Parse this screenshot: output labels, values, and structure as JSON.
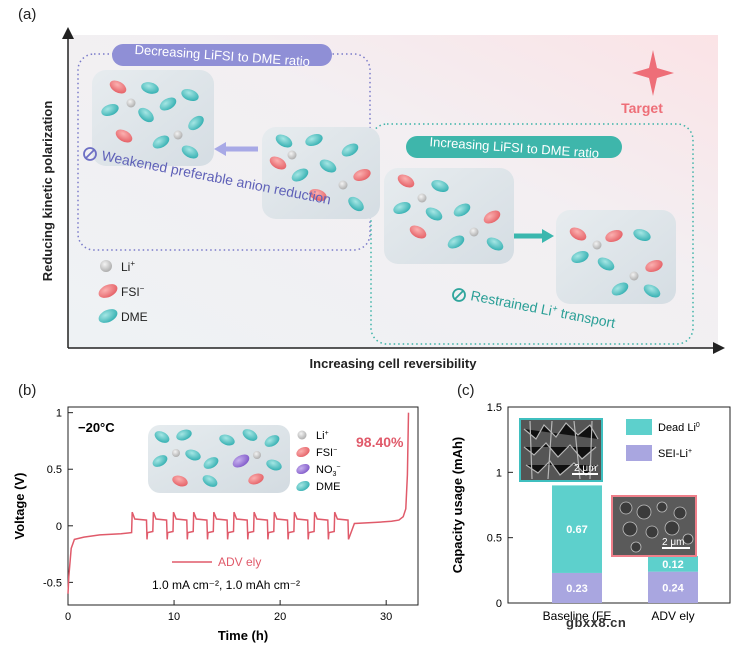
{
  "panel_a": {
    "label": "(a)",
    "y_axis": "Reducing kinetic polarization",
    "x_axis": "Increasing cell reversibility",
    "target": "Target",
    "left_box": {
      "banner": "Decreasing LiFSI to DME ratio",
      "note": "Weakened preferable anion reduction"
    },
    "right_box": {
      "banner": "Increasing LiFSI to DME ratio",
      "note_pre": "Restrained Li",
      "note_sup": "+",
      "note_post": " transport"
    },
    "legend": {
      "li_base": "Li",
      "li_sup": "+",
      "fsi_base": "FSI",
      "fsi_sup": "−",
      "dme": "DME"
    },
    "colors": {
      "li": "#c8c8c8",
      "fsi": "#f07c7c",
      "dme": "#4cc3c3",
      "left_accent": "#8d8ed4",
      "right_accent": "#3ab0a6",
      "target": "#ee6e78"
    }
  },
  "panel_b": {
    "label": "(b)",
    "temperature": "−20°C",
    "efficiency": "98.40%",
    "legend_line": "ADV ely",
    "conditions": "1.0 mA cm⁻², 1.0 mAh cm⁻²",
    "xlabel": "Time (h)",
    "ylabel": "Voltage (V)",
    "x_ticks": [
      "0",
      "10",
      "20",
      "30"
    ],
    "y_ticks": [
      "1",
      "0.5",
      "0",
      "-0.5"
    ],
    "inset_legend": {
      "li_base": "Li",
      "li_sup": "+",
      "fsi_base": "FSI",
      "fsi_sup": "−",
      "no3_base": "NO",
      "no3_sub": "3",
      "no3_sup": "−",
      "dme": "DME"
    },
    "colors": {
      "line": "#e05a6a",
      "no3": "#9b6fd6"
    }
  },
  "panel_c": {
    "label": "(c)",
    "ylabel": "Capacity usage (mAh)",
    "y_ticks": [
      "1.5",
      "1",
      "0.5",
      "0"
    ],
    "legend_dead_base": "Dead Li",
    "legend_dead_sup": "0",
    "legend_sei_base": "SEI-Li",
    "legend_sei_sup": "+",
    "scale_bar_1": "2 μm",
    "scale_bar_2": "2 μm",
    "category_1": "Baseline (FE",
    "category_2": "ADV ely",
    "colors": {
      "dead": "#5dd0cc",
      "sei": "#a9a6e0",
      "sem1_border": "#3fbfbf",
      "sem2_border": "#ef7f8a"
    }
  },
  "watermark": "gbxx8.cn",
  "chart_data": [
    {
      "type": "line",
      "title": "",
      "xlabel": "Time (h)",
      "ylabel": "Voltage (V)",
      "xlim": [
        0,
        33
      ],
      "ylim": [
        -0.7,
        1.05
      ],
      "series": [
        {
          "name": "ADV ely",
          "x": [
            0,
            0.08,
            0.3,
            0.6,
            1.5,
            3,
            5,
            6.0,
            6.05,
            6.3,
            7.4,
            7.45,
            7.5,
            8.0,
            8.05,
            8.3,
            9.3,
            9.35,
            9.4,
            9.9,
            9.95,
            10.2,
            11.2,
            11.25,
            11.3,
            11.8,
            11.85,
            12.1,
            13.1,
            13.15,
            13.2,
            13.7,
            13.75,
            14.0,
            15.0,
            15.05,
            15.1,
            15.6,
            15.65,
            15.9,
            16.9,
            16.95,
            17.0,
            17.5,
            17.55,
            17.8,
            18.8,
            18.85,
            18.9,
            19.4,
            19.45,
            19.7,
            20.7,
            20.75,
            20.8,
            21.3,
            21.35,
            21.6,
            22.6,
            22.65,
            22.7,
            23.2,
            23.25,
            23.5,
            24.5,
            24.55,
            24.6,
            25.1,
            25.15,
            25.4,
            26.4,
            26.45,
            27,
            29,
            30.5,
            31.2,
            31.6,
            31.85,
            32.0,
            32.1
          ],
          "y": [
            -0.6,
            -0.45,
            -0.2,
            -0.12,
            -0.1,
            -0.08,
            -0.07,
            -0.06,
            0.12,
            0.06,
            0.05,
            -0.12,
            -0.06,
            -0.05,
            0.12,
            0.06,
            0.05,
            -0.12,
            -0.06,
            -0.05,
            0.12,
            0.06,
            0.05,
            -0.12,
            -0.06,
            -0.05,
            0.12,
            0.06,
            0.05,
            -0.12,
            -0.06,
            -0.05,
            0.12,
            0.06,
            0.05,
            -0.12,
            -0.06,
            -0.05,
            0.12,
            0.06,
            0.05,
            -0.12,
            -0.06,
            -0.05,
            0.12,
            0.06,
            0.05,
            -0.12,
            -0.06,
            -0.05,
            0.12,
            0.06,
            0.05,
            -0.12,
            -0.06,
            -0.05,
            0.12,
            0.06,
            0.05,
            -0.12,
            -0.06,
            -0.05,
            0.12,
            0.06,
            0.05,
            -0.12,
            -0.06,
            -0.05,
            0.12,
            0.06,
            0.05,
            -0.12,
            0.02,
            0.03,
            0.04,
            0.05,
            0.08,
            0.15,
            0.45,
            1.0
          ]
        }
      ]
    },
    {
      "type": "bar",
      "title": "",
      "xlabel": "",
      "ylabel": "Capacity usage (mAh)",
      "ylim": [
        0,
        1.5
      ],
      "categories": [
        "Baseline (FE",
        "ADV ely"
      ],
      "series": [
        {
          "name": "SEI-Li+",
          "values": [
            0.23,
            0.24
          ]
        },
        {
          "name": "Dead Li0",
          "values": [
            0.67,
            0.12
          ]
        }
      ]
    }
  ]
}
